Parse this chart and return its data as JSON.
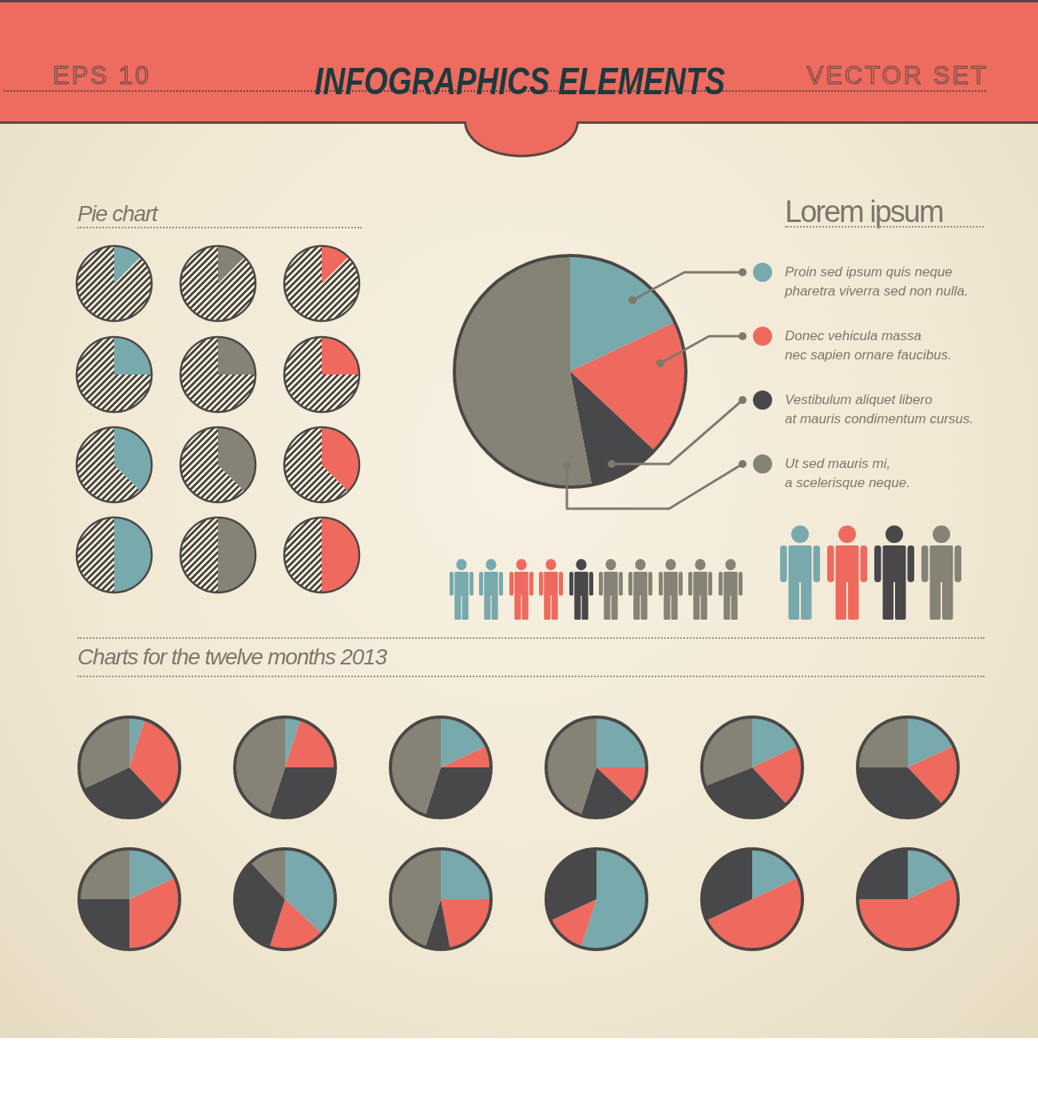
{
  "chart_data": [
    {
      "type": "other",
      "title": "INFOGRAPHICS ELEMENTS",
      "annotations": [
        "EPS 10",
        "VECTOR SET"
      ]
    },
    {
      "type": "other",
      "title": "Pie chart"
    },
    {
      "type": "pie",
      "categories": [
        null,
        null
      ],
      "values": [
        12.5,
        87.5
      ],
      "colors": [
        "#78a9ad",
        "#4a4846"
      ]
    },
    {
      "type": "pie",
      "categories": [
        null,
        null
      ],
      "values": [
        12.5,
        87.5
      ],
      "colors": [
        "#858276",
        "#4a4846"
      ]
    },
    {
      "type": "pie",
      "categories": [
        null,
        null
      ],
      "values": [
        12.5,
        87.5
      ],
      "colors": [
        "#ee6a5f",
        "#4a4846"
      ]
    },
    {
      "type": "pie",
      "categories": [
        null,
        null
      ],
      "values": [
        25,
        75
      ],
      "colors": [
        "#78a9ad",
        "#4a4846"
      ]
    },
    {
      "type": "pie",
      "categories": [
        null,
        null
      ],
      "values": [
        25,
        75
      ],
      "colors": [
        "#858276",
        "#4a4846"
      ]
    },
    {
      "type": "pie",
      "categories": [
        null,
        null
      ],
      "values": [
        25,
        75
      ],
      "colors": [
        "#ee6a5f",
        "#4a4846"
      ]
    },
    {
      "type": "pie",
      "categories": [
        null,
        null
      ],
      "values": [
        37.5,
        62.5
      ],
      "colors": [
        "#78a9ad",
        "#4a4846"
      ]
    },
    {
      "type": "pie",
      "categories": [
        null,
        null
      ],
      "values": [
        37.5,
        62.5
      ],
      "colors": [
        "#858276",
        "#4a4846"
      ]
    },
    {
      "type": "pie",
      "categories": [
        null,
        null
      ],
      "values": [
        37.5,
        62.5
      ],
      "colors": [
        "#ee6a5f",
        "#4a4846"
      ]
    },
    {
      "type": "pie",
      "categories": [
        null,
        null
      ],
      "values": [
        50,
        50
      ],
      "colors": [
        "#78a9ad",
        "#4a4846"
      ]
    },
    {
      "type": "pie",
      "categories": [
        null,
        null
      ],
      "values": [
        50,
        50
      ],
      "colors": [
        "#858276",
        "#4a4846"
      ]
    },
    {
      "type": "pie",
      "categories": [
        null,
        null
      ],
      "values": [
        50,
        50
      ],
      "colors": [
        "#ee6a5f",
        "#4a4846"
      ]
    },
    {
      "type": "pie",
      "title": "Lorem ipsum",
      "categories": [
        "Proin sed ipsum quis neque\npharetra viverra sed non nulla.",
        "Donec vehicula massa\nnec sapien ornare faucibus.",
        "Vestibulum aliquet libero\nat mauris condimentum cursus.",
        "Ut sed mauris mi,\na scelerisque neque."
      ],
      "values": [
        18,
        19,
        10,
        53
      ],
      "colors": [
        "#78a9ad",
        "#ee6a5f",
        "#48484a",
        "#858276"
      ],
      "legend": "right"
    },
    {
      "type": "other",
      "title": "Charts for the twelve months 2013"
    },
    {
      "type": "pie",
      "categories": [
        null,
        null,
        null,
        null
      ],
      "values": [
        5,
        33,
        30,
        32
      ],
      "colors": [
        "#78a9ad",
        "#ee6a5f",
        "#48484a",
        "#858276"
      ]
    },
    {
      "type": "pie",
      "categories": [
        null,
        null,
        null,
        null
      ],
      "values": [
        5,
        20,
        30,
        45
      ],
      "colors": [
        "#78a9ad",
        "#ee6a5f",
        "#48484a",
        "#858276"
      ]
    },
    {
      "type": "pie",
      "categories": [
        null,
        null,
        null,
        null
      ],
      "values": [
        18,
        7,
        30,
        45
      ],
      "colors": [
        "#78a9ad",
        "#ee6a5f",
        "#48484a",
        "#858276"
      ]
    },
    {
      "type": "pie",
      "categories": [
        null,
        null,
        null,
        null
      ],
      "values": [
        25,
        12,
        18,
        45
      ],
      "colors": [
        "#78a9ad",
        "#ee6a5f",
        "#48484a",
        "#858276"
      ]
    },
    {
      "type": "pie",
      "categories": [
        null,
        null,
        null,
        null
      ],
      "values": [
        18,
        20,
        31,
        31
      ],
      "colors": [
        "#78a9ad",
        "#ee6a5f",
        "#48484a",
        "#858276"
      ]
    },
    {
      "type": "pie",
      "categories": [
        null,
        null,
        null,
        null
      ],
      "values": [
        18,
        20,
        37,
        25
      ],
      "colors": [
        "#78a9ad",
        "#ee6a5f",
        "#48484a",
        "#858276"
      ]
    },
    {
      "type": "pie",
      "categories": [
        null,
        null,
        null,
        null
      ],
      "values": [
        18,
        32,
        25,
        25
      ],
      "colors": [
        "#78a9ad",
        "#ee6a5f",
        "#48484a",
        "#858276"
      ]
    },
    {
      "type": "pie",
      "categories": [
        null,
        null,
        null,
        null
      ],
      "values": [
        37,
        18,
        33,
        12
      ],
      "colors": [
        "#78a9ad",
        "#ee6a5f",
        "#48484a",
        "#858276"
      ]
    },
    {
      "type": "pie",
      "categories": [
        null,
        null,
        null,
        null
      ],
      "values": [
        25,
        22,
        8,
        45
      ],
      "colors": [
        "#78a9ad",
        "#ee6a5f",
        "#48484a",
        "#858276"
      ]
    },
    {
      "type": "pie",
      "categories": [
        null,
        null,
        null
      ],
      "values": [
        55,
        13,
        32
      ],
      "colors": [
        "#78a9ad",
        "#ee6a5f",
        "#48484a"
      ]
    },
    {
      "type": "pie",
      "categories": [
        null,
        null,
        null
      ],
      "values": [
        18,
        50,
        32
      ],
      "colors": [
        "#78a9ad",
        "#ee6a5f",
        "#48484a"
      ]
    },
    {
      "type": "pie",
      "categories": [
        null,
        null,
        null
      ],
      "values": [
        18,
        57,
        25
      ],
      "colors": [
        "#78a9ad",
        "#ee6a5f",
        "#48484a"
      ]
    }
  ]
}
